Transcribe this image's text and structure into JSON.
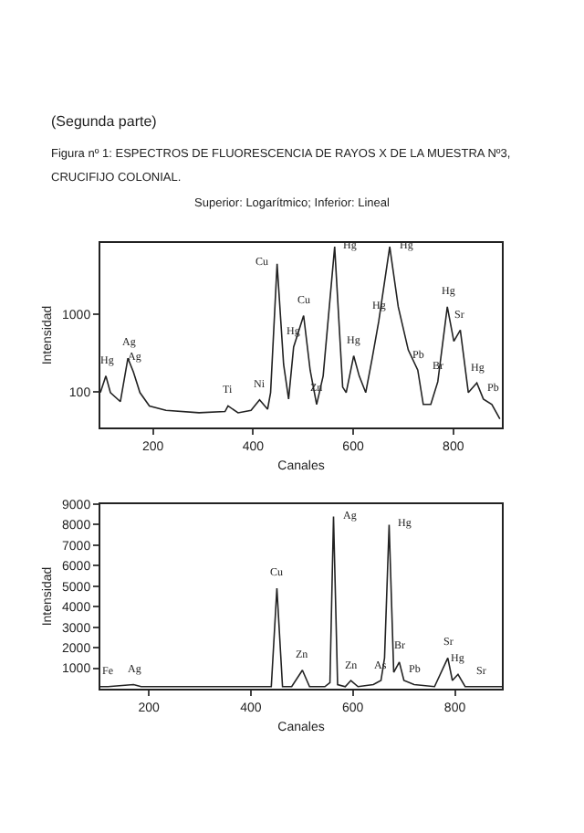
{
  "chart_data": [
    {
      "type": "line",
      "title": "Figura nº 1: ESPECTROS DE FLUORESCENCIA DE RAYOS X DE LA MUESTRA Nº3, CRUCIFIJO COLONIAL.",
      "subtitle": "Superior: Logarítmico; Inferior: Lineal",
      "xlabel": "Canales",
      "ylabel": "Intensidad",
      "log": "y",
      "color": "#222222",
      "x": [
        95,
        106,
        115,
        135,
        150,
        161,
        174,
        193,
        226,
        292,
        344,
        350,
        370,
        396,
        413,
        429,
        435,
        448,
        461,
        471,
        481,
        501,
        514,
        527,
        540,
        563,
        579,
        586,
        601,
        612,
        625,
        638,
        651,
        673,
        690,
        710,
        729,
        740,
        755,
        769,
        788,
        801,
        814,
        830,
        847,
        860,
        877,
        893
      ],
      "values": [
        98,
        160,
        98,
        75,
        270,
        180,
        98,
        66,
        58,
        54,
        56,
        66,
        54,
        58,
        79,
        60,
        98,
        4370,
        225,
        81,
        375,
        950,
        190,
        69,
        160,
        7250,
        115,
        98,
        290,
        160,
        98,
        270,
        800,
        7250,
        1230,
        345,
        190,
        69,
        69,
        135,
        1230,
        445,
        620,
        98,
        130,
        81,
        69,
        45
      ],
      "xlim": [
        95,
        897
      ],
      "ylim": [
        35,
        8100
      ],
      "xticks": [
        200,
        400,
        600,
        800
      ],
      "yticks": [
        100,
        1000
      ],
      "annotations": [
        "(Segunda parte)",
        {
          "text": "Hg",
          "x": 106,
          "y": 160
        },
        {
          "text": "Ag",
          "x": 150,
          "y": 270
        },
        {
          "text": "Ag",
          "x": 161,
          "y": 180
        },
        {
          "text": "Ti",
          "x": 350,
          "y": 66
        },
        {
          "text": "Ni",
          "x": 413,
          "y": 79
        },
        {
          "text": "Cu",
          "x": 448,
          "y": 4370
        },
        {
          "text": "Hg",
          "x": 481,
          "y": 375
        },
        {
          "text": "Cu",
          "x": 501,
          "y": 950
        },
        {
          "text": "Hg",
          "x": 563,
          "y": 7250
        },
        {
          "text": "Zn",
          "x": 527,
          "y": 69
        },
        {
          "text": "Hg",
          "x": 601,
          "y": 290
        },
        {
          "text": "Hg",
          "x": 651,
          "y": 800
        },
        {
          "text": "Hg",
          "x": 673,
          "y": 7250
        },
        {
          "text": "Pb",
          "x": 729,
          "y": 190
        },
        {
          "text": "Br",
          "x": 769,
          "y": 135
        },
        {
          "text": "Hg",
          "x": 788,
          "y": 1230
        },
        {
          "text": "Sr",
          "x": 812,
          "y": 620
        },
        {
          "text": "Hg",
          "x": 847,
          "y": 130
        },
        {
          "text": "Pb",
          "x": 877,
          "y": 69
        }
      ]
    },
    {
      "type": "line",
      "xlabel": "Canales",
      "ylabel": "Intensidad",
      "color": "#222222",
      "x": [
        105,
        120,
        170,
        185,
        300,
        420,
        440,
        451,
        462,
        480,
        501,
        515,
        545,
        555,
        562,
        570,
        585,
        596,
        610,
        640,
        655,
        662,
        671,
        680,
        691,
        700,
        720,
        760,
        786,
        795,
        806,
        820,
        850,
        892
      ],
      "values": [
        100,
        100,
        200,
        100,
        100,
        100,
        100,
        4900,
        100,
        100,
        900,
        100,
        100,
        300,
        8400,
        200,
        100,
        400,
        100,
        200,
        400,
        1500,
        8000,
        800,
        1300,
        400,
        200,
        100,
        1500,
        400,
        700,
        100,
        100,
        100
      ],
      "xlim": [
        105,
        892
      ],
      "ylim": [
        0,
        9000
      ],
      "xticks": [
        200,
        400,
        600,
        800
      ],
      "yticks": [
        1000,
        2000,
        3000,
        4000,
        5000,
        6000,
        7000,
        8000,
        9000
      ],
      "annotations": [
        {
          "text": "Fe",
          "x": 120,
          "y": 100
        },
        {
          "text": "Ag",
          "x": 170,
          "y": 200
        },
        {
          "text": "Cu",
          "x": 451,
          "y": 4900
        },
        {
          "text": "Zn",
          "x": 501,
          "y": 900
        },
        {
          "text": "Ag",
          "x": 562,
          "y": 8400
        },
        {
          "text": "Zn",
          "x": 596,
          "y": 400
        },
        {
          "text": "As",
          "x": 655,
          "y": 400
        },
        {
          "text": "Hg",
          "x": 671,
          "y": 8000
        },
        {
          "text": "Br",
          "x": 691,
          "y": 1300
        },
        {
          "text": "Pb",
          "x": 720,
          "y": 200
        },
        {
          "text": "Sr",
          "x": 786,
          "y": 1500
        },
        {
          "text": "Hg",
          "x": 806,
          "y": 700
        },
        {
          "text": "Sr",
          "x": 850,
          "y": 100
        }
      ]
    }
  ]
}
